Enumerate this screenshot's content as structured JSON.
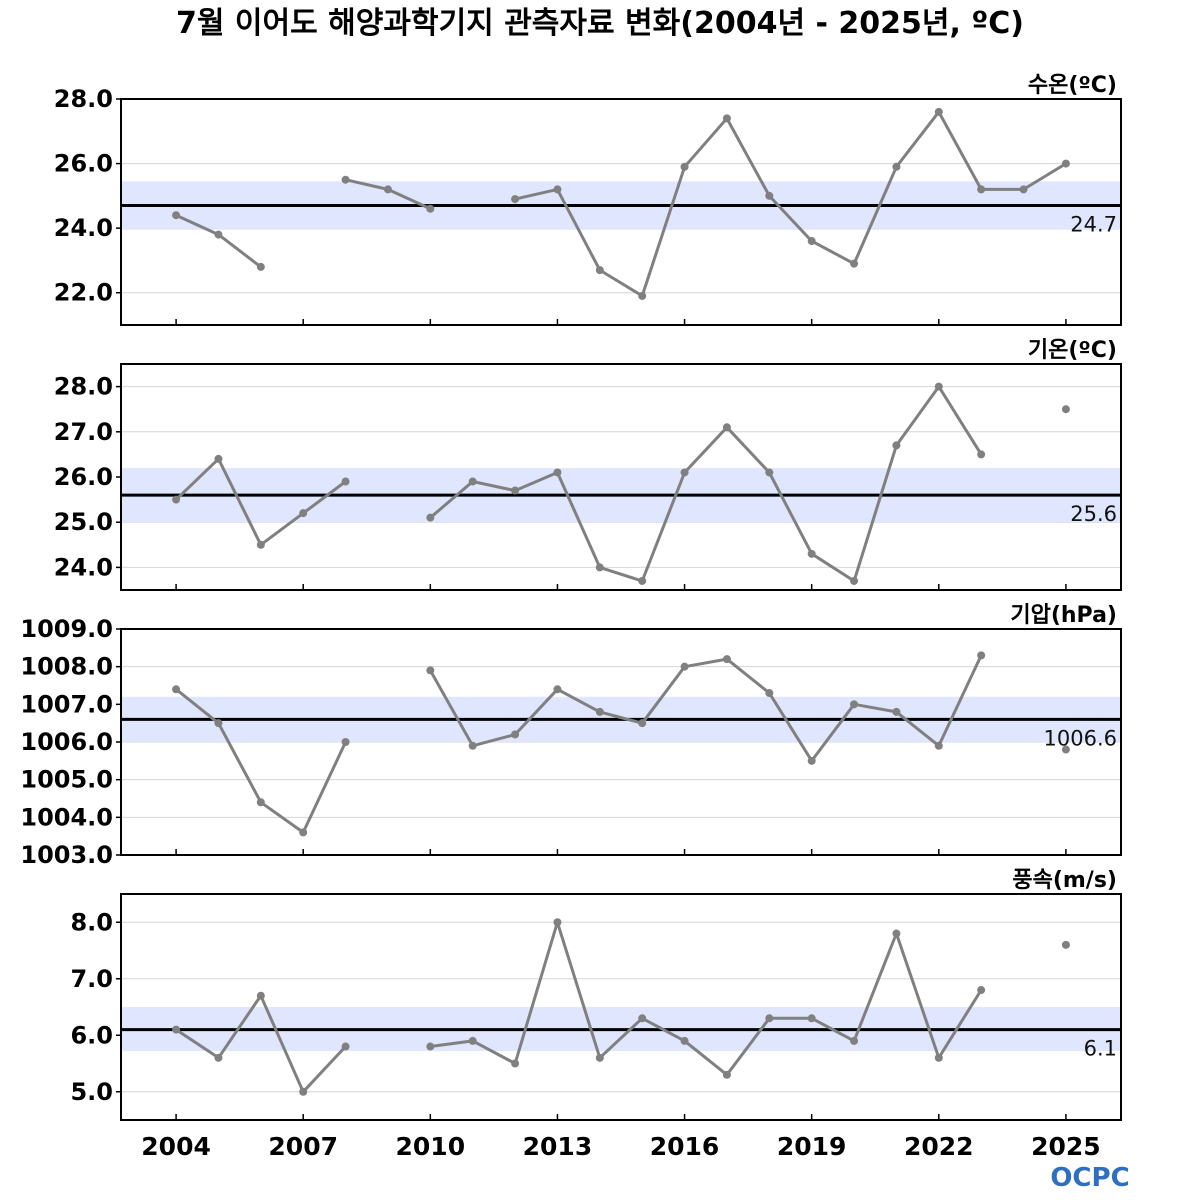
{
  "chart_data": {
    "type": "line",
    "title": "7월 이어도 해양과학기지 관측자료 변화(2004년 - 2025년, ºC)",
    "x": [
      2004,
      2005,
      2006,
      2007,
      2008,
      2009,
      2010,
      2011,
      2012,
      2013,
      2014,
      2015,
      2016,
      2017,
      2018,
      2019,
      2020,
      2021,
      2022,
      2023,
      2024,
      2025
    ],
    "xticks": [
      2004,
      2007,
      2010,
      2013,
      2016,
      2019,
      2022,
      2025
    ],
    "xlim": [
      2002.7,
      2026.3
    ],
    "panels": [
      {
        "label": "수온(ºC)",
        "values": [
          24.4,
          23.8,
          22.8,
          null,
          25.5,
          25.2,
          24.6,
          null,
          24.9,
          25.2,
          22.7,
          21.9,
          25.9,
          27.4,
          25.0,
          23.6,
          22.9,
          25.9,
          27.6,
          25.2,
          25.2,
          26.0
        ],
        "mean": 24.7,
        "mean_label": "24.7",
        "band": [
          23.95,
          25.45
        ],
        "ylim": [
          21.0,
          28.0
        ],
        "yticks": [
          22.0,
          24.0,
          26.0,
          28.0
        ],
        "tick_labels": [
          "22.0",
          "24.0",
          "26.0",
          "28.0"
        ]
      },
      {
        "label": "기온(ºC)",
        "values": [
          25.5,
          26.4,
          24.5,
          25.2,
          25.9,
          null,
          25.1,
          25.9,
          25.7,
          26.1,
          24.0,
          23.7,
          26.1,
          27.1,
          26.1,
          24.3,
          23.7,
          26.7,
          28.0,
          26.5,
          null,
          27.5
        ],
        "mean": 25.6,
        "mean_label": "25.6",
        "band": [
          25.0,
          26.2
        ],
        "ylim": [
          23.5,
          28.5
        ],
        "yticks": [
          24.0,
          25.0,
          26.0,
          27.0,
          28.0
        ],
        "tick_labels": [
          "24.0",
          "25.0",
          "26.0",
          "27.0",
          "28.0"
        ]
      },
      {
        "label": "기압(hPa)",
        "values": [
          1007.4,
          1006.5,
          1004.4,
          1003.6,
          1006.0,
          null,
          1007.9,
          1005.9,
          1006.2,
          1007.4,
          1006.8,
          1006.5,
          1008.0,
          1008.2,
          1007.3,
          1005.5,
          1007.0,
          1006.8,
          1005.9,
          1008.3,
          null,
          1005.8
        ],
        "mean": 1006.6,
        "mean_label": "1006.6",
        "band": [
          1006.0,
          1007.2
        ],
        "ylim": [
          1003.0,
          1009.0
        ],
        "yticks": [
          1003.0,
          1004.0,
          1005.0,
          1006.0,
          1007.0,
          1008.0,
          1009.0
        ],
        "tick_labels": [
          "1003.0",
          "1004.0",
          "1005.0",
          "1006.0",
          "1007.0",
          "1008.0",
          "1009.0"
        ]
      },
      {
        "label": "풍속(m/s)",
        "values": [
          6.1,
          5.6,
          6.7,
          5.0,
          5.8,
          null,
          5.8,
          5.9,
          5.5,
          8.0,
          5.6,
          6.3,
          5.9,
          5.3,
          6.3,
          6.3,
          5.9,
          7.8,
          5.6,
          6.8,
          null,
          7.6
        ],
        "mean": 6.1,
        "mean_label": "6.1",
        "band": [
          5.72,
          6.5
        ],
        "ylim": [
          4.5,
          8.5
        ],
        "yticks": [
          5.0,
          6.0,
          7.0,
          8.0
        ],
        "tick_labels": [
          "5.0",
          "6.0",
          "7.0",
          "8.0"
        ]
      }
    ],
    "grid": true,
    "colors": {
      "line": "#808080",
      "mean": "#000000",
      "band": "#dfe6fd",
      "grid": "#d6d6d6"
    }
  },
  "logo_text": "OCPC"
}
